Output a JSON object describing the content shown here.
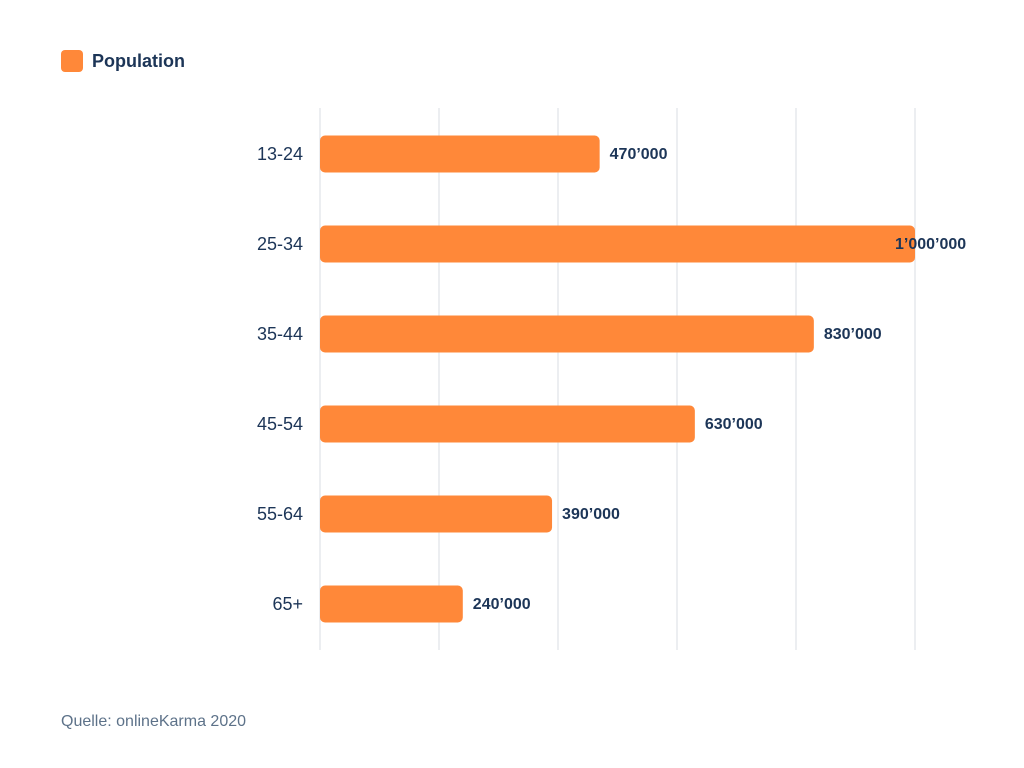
{
  "legend": {
    "label": "Population"
  },
  "source": "Quelle: onlineKarma 2020",
  "colors": {
    "bar": "#ff8839",
    "grid": "#d9dde3",
    "label": "#1c3557",
    "value": "#1c3557"
  },
  "chart_data": {
    "type": "bar",
    "orientation": "horizontal",
    "categories": [
      "13-24",
      "25-34",
      "35-44",
      "45-54",
      "55-64",
      "65+"
    ],
    "series": [
      {
        "name": "Population",
        "values": [
          470000,
          1000000,
          830000,
          630000,
          390000,
          240000
        ]
      }
    ],
    "value_labels": [
      "470’000",
      "1’000’000",
      "830’000",
      "630’000",
      "390’000",
      "240’000"
    ],
    "xlim": [
      0,
      1000000
    ],
    "grid": true,
    "legend_position": "top-left"
  }
}
